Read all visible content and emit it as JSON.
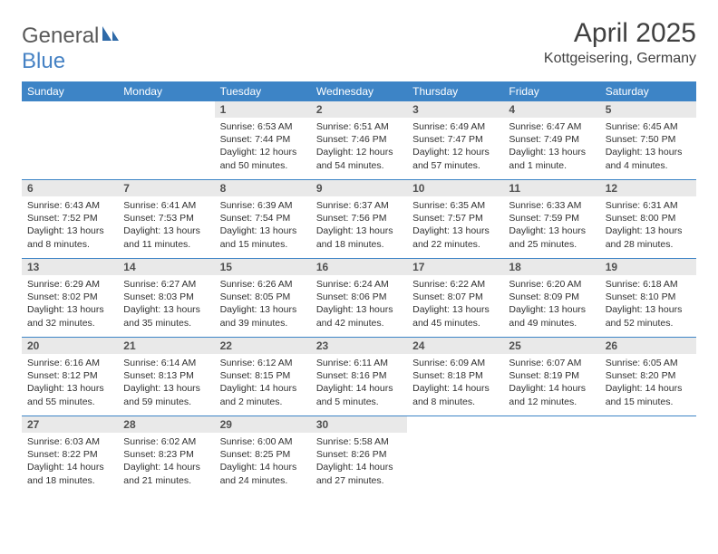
{
  "brand": {
    "part1": "General",
    "part2": "Blue"
  },
  "title": "April 2025",
  "location": "Kottgeisering, Germany",
  "colors": {
    "header_bg": "#3d84c6",
    "header_text": "#ffffff",
    "daynum_bg": "#e9e9e9",
    "border": "#3d84c6",
    "logo_gray": "#5a5a5a",
    "logo_blue": "#4682c4"
  },
  "weekdays": [
    "Sunday",
    "Monday",
    "Tuesday",
    "Wednesday",
    "Thursday",
    "Friday",
    "Saturday"
  ],
  "weeks": [
    [
      null,
      null,
      {
        "n": "1",
        "sr": "Sunrise: 6:53 AM",
        "ss": "Sunset: 7:44 PM",
        "dl": "Daylight: 12 hours and 50 minutes."
      },
      {
        "n": "2",
        "sr": "Sunrise: 6:51 AM",
        "ss": "Sunset: 7:46 PM",
        "dl": "Daylight: 12 hours and 54 minutes."
      },
      {
        "n": "3",
        "sr": "Sunrise: 6:49 AM",
        "ss": "Sunset: 7:47 PM",
        "dl": "Daylight: 12 hours and 57 minutes."
      },
      {
        "n": "4",
        "sr": "Sunrise: 6:47 AM",
        "ss": "Sunset: 7:49 PM",
        "dl": "Daylight: 13 hours and 1 minute."
      },
      {
        "n": "5",
        "sr": "Sunrise: 6:45 AM",
        "ss": "Sunset: 7:50 PM",
        "dl": "Daylight: 13 hours and 4 minutes."
      }
    ],
    [
      {
        "n": "6",
        "sr": "Sunrise: 6:43 AM",
        "ss": "Sunset: 7:52 PM",
        "dl": "Daylight: 13 hours and 8 minutes."
      },
      {
        "n": "7",
        "sr": "Sunrise: 6:41 AM",
        "ss": "Sunset: 7:53 PM",
        "dl": "Daylight: 13 hours and 11 minutes."
      },
      {
        "n": "8",
        "sr": "Sunrise: 6:39 AM",
        "ss": "Sunset: 7:54 PM",
        "dl": "Daylight: 13 hours and 15 minutes."
      },
      {
        "n": "9",
        "sr": "Sunrise: 6:37 AM",
        "ss": "Sunset: 7:56 PM",
        "dl": "Daylight: 13 hours and 18 minutes."
      },
      {
        "n": "10",
        "sr": "Sunrise: 6:35 AM",
        "ss": "Sunset: 7:57 PM",
        "dl": "Daylight: 13 hours and 22 minutes."
      },
      {
        "n": "11",
        "sr": "Sunrise: 6:33 AM",
        "ss": "Sunset: 7:59 PM",
        "dl": "Daylight: 13 hours and 25 minutes."
      },
      {
        "n": "12",
        "sr": "Sunrise: 6:31 AM",
        "ss": "Sunset: 8:00 PM",
        "dl": "Daylight: 13 hours and 28 minutes."
      }
    ],
    [
      {
        "n": "13",
        "sr": "Sunrise: 6:29 AM",
        "ss": "Sunset: 8:02 PM",
        "dl": "Daylight: 13 hours and 32 minutes."
      },
      {
        "n": "14",
        "sr": "Sunrise: 6:27 AM",
        "ss": "Sunset: 8:03 PM",
        "dl": "Daylight: 13 hours and 35 minutes."
      },
      {
        "n": "15",
        "sr": "Sunrise: 6:26 AM",
        "ss": "Sunset: 8:05 PM",
        "dl": "Daylight: 13 hours and 39 minutes."
      },
      {
        "n": "16",
        "sr": "Sunrise: 6:24 AM",
        "ss": "Sunset: 8:06 PM",
        "dl": "Daylight: 13 hours and 42 minutes."
      },
      {
        "n": "17",
        "sr": "Sunrise: 6:22 AM",
        "ss": "Sunset: 8:07 PM",
        "dl": "Daylight: 13 hours and 45 minutes."
      },
      {
        "n": "18",
        "sr": "Sunrise: 6:20 AM",
        "ss": "Sunset: 8:09 PM",
        "dl": "Daylight: 13 hours and 49 minutes."
      },
      {
        "n": "19",
        "sr": "Sunrise: 6:18 AM",
        "ss": "Sunset: 8:10 PM",
        "dl": "Daylight: 13 hours and 52 minutes."
      }
    ],
    [
      {
        "n": "20",
        "sr": "Sunrise: 6:16 AM",
        "ss": "Sunset: 8:12 PM",
        "dl": "Daylight: 13 hours and 55 minutes."
      },
      {
        "n": "21",
        "sr": "Sunrise: 6:14 AM",
        "ss": "Sunset: 8:13 PM",
        "dl": "Daylight: 13 hours and 59 minutes."
      },
      {
        "n": "22",
        "sr": "Sunrise: 6:12 AM",
        "ss": "Sunset: 8:15 PM",
        "dl": "Daylight: 14 hours and 2 minutes."
      },
      {
        "n": "23",
        "sr": "Sunrise: 6:11 AM",
        "ss": "Sunset: 8:16 PM",
        "dl": "Daylight: 14 hours and 5 minutes."
      },
      {
        "n": "24",
        "sr": "Sunrise: 6:09 AM",
        "ss": "Sunset: 8:18 PM",
        "dl": "Daylight: 14 hours and 8 minutes."
      },
      {
        "n": "25",
        "sr": "Sunrise: 6:07 AM",
        "ss": "Sunset: 8:19 PM",
        "dl": "Daylight: 14 hours and 12 minutes."
      },
      {
        "n": "26",
        "sr": "Sunrise: 6:05 AM",
        "ss": "Sunset: 8:20 PM",
        "dl": "Daylight: 14 hours and 15 minutes."
      }
    ],
    [
      {
        "n": "27",
        "sr": "Sunrise: 6:03 AM",
        "ss": "Sunset: 8:22 PM",
        "dl": "Daylight: 14 hours and 18 minutes."
      },
      {
        "n": "28",
        "sr": "Sunrise: 6:02 AM",
        "ss": "Sunset: 8:23 PM",
        "dl": "Daylight: 14 hours and 21 minutes."
      },
      {
        "n": "29",
        "sr": "Sunrise: 6:00 AM",
        "ss": "Sunset: 8:25 PM",
        "dl": "Daylight: 14 hours and 24 minutes."
      },
      {
        "n": "30",
        "sr": "Sunrise: 5:58 AM",
        "ss": "Sunset: 8:26 PM",
        "dl": "Daylight: 14 hours and 27 minutes."
      },
      null,
      null,
      null
    ]
  ]
}
